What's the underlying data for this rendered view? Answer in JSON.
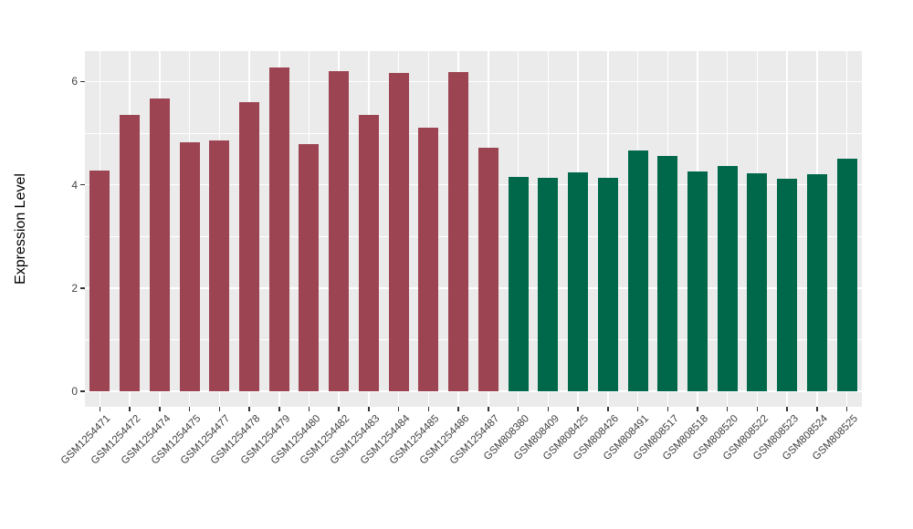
{
  "figure": {
    "background": "#FFFFFF",
    "panel_background": "#EBEBEB",
    "gridline_color": "#FFFFFF",
    "axis_text_color": "#444444",
    "tick_mark_color": "#333333"
  },
  "chart_data": {
    "type": "bar",
    "title": "",
    "xlabel": "",
    "ylabel": "Expression Level",
    "ylim": [
      0,
      6.59
    ],
    "ytick_values": [
      0,
      2,
      4,
      6
    ],
    "ytick_labels": [
      "0",
      "2",
      "4",
      "6"
    ],
    "yminor_values": [
      1,
      3,
      5
    ],
    "grid": true,
    "legend_position": "none",
    "series": [
      {
        "name": "red-group",
        "color": "#9D4452",
        "labels": [
          "GSM1254471",
          "GSM1254472",
          "GSM1254474",
          "GSM1254475",
          "GSM1254477",
          "GSM1254478",
          "GSM1254479",
          "GSM1254480",
          "GSM1254482",
          "GSM1254483",
          "GSM1254484",
          "GSM1254485",
          "GSM1254486",
          "GSM1254487"
        ],
        "values": [
          4.28,
          5.35,
          5.68,
          4.82,
          4.86,
          5.6,
          6.28,
          4.78,
          6.21,
          5.35,
          6.17,
          5.11,
          6.18,
          4.71
        ]
      },
      {
        "name": "green-group",
        "color": "#00684A",
        "labels": [
          "GSM808380",
          "GSM808409",
          "GSM808425",
          "GSM808426",
          "GSM808491",
          "GSM808517",
          "GSM808518",
          "GSM808520",
          "GSM808522",
          "GSM808523",
          "GSM808524",
          "GSM808525"
        ],
        "values": [
          4.16,
          4.13,
          4.24,
          4.13,
          4.66,
          4.56,
          4.26,
          4.36,
          4.23,
          4.11,
          4.2,
          4.5
        ]
      }
    ]
  }
}
